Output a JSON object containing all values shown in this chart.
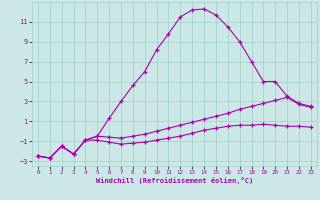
{
  "xlabel": "Windchill (Refroidissement éolien,°C)",
  "x_ticks": [
    0,
    1,
    2,
    3,
    4,
    5,
    6,
    7,
    8,
    9,
    10,
    11,
    12,
    13,
    14,
    15,
    16,
    17,
    18,
    19,
    20,
    21,
    22,
    23
  ],
  "ylim": [
    -3.5,
    13.0
  ],
  "xlim": [
    -0.5,
    23.5
  ],
  "yticks": [
    -3,
    -1,
    1,
    3,
    5,
    7,
    9,
    11
  ],
  "bg_color": "#cce8e6",
  "grid_color": "#9ecfcc",
  "line_color": "#aa00aa",
  "line1_y": [
    -2.5,
    -2.7,
    -1.5,
    -2.3,
    -0.9,
    -0.5,
    1.3,
    3.0,
    4.6,
    6.0,
    8.2,
    9.8,
    11.5,
    12.2,
    12.3,
    11.7,
    10.5,
    9.0,
    7.0,
    5.0,
    5.0,
    3.5,
    2.8,
    2.5
  ],
  "line2_y": [
    -2.5,
    -2.7,
    -1.5,
    -2.3,
    -0.9,
    -0.5,
    -0.6,
    -0.7,
    -0.5,
    -0.3,
    0.0,
    0.3,
    0.6,
    0.9,
    1.2,
    1.5,
    1.8,
    2.2,
    2.5,
    2.8,
    3.1,
    3.4,
    2.7,
    2.4
  ],
  "line3_y": [
    -2.5,
    -2.7,
    -1.5,
    -2.3,
    -0.9,
    -0.9,
    -1.1,
    -1.3,
    -1.2,
    -1.1,
    -0.9,
    -0.7,
    -0.5,
    -0.2,
    0.1,
    0.3,
    0.5,
    0.6,
    0.6,
    0.7,
    0.6,
    0.5,
    0.5,
    0.4
  ]
}
